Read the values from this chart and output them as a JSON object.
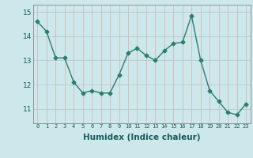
{
  "x": [
    0,
    1,
    2,
    3,
    4,
    5,
    6,
    7,
    8,
    9,
    10,
    11,
    12,
    13,
    14,
    15,
    16,
    17,
    18,
    19,
    20,
    21,
    22,
    23
  ],
  "y": [
    14.6,
    14.2,
    13.1,
    13.1,
    12.1,
    11.65,
    11.75,
    11.65,
    11.65,
    12.4,
    13.3,
    13.5,
    13.2,
    13.0,
    13.4,
    13.7,
    13.75,
    14.85,
    13.0,
    11.75,
    11.3,
    10.85,
    10.75,
    11.2
  ],
  "line_color": "#2e7d6e",
  "marker": "D",
  "markersize": 2.5,
  "linewidth": 1.0,
  "bg_color": "#cce8ea",
  "grid_color_v": "#d8b8b8",
  "grid_color_h": "#b8c8c8",
  "xlabel": "Humidex (Indice chaleur)",
  "xlabel_fontsize": 7.5,
  "xtick_fontsize": 5.0,
  "ytick_fontsize": 6.5,
  "ytick_labels": [
    "11",
    "12",
    "13",
    "14",
    "15"
  ],
  "ylim": [
    10.4,
    15.3
  ],
  "xlim": [
    -0.5,
    23.5
  ]
}
